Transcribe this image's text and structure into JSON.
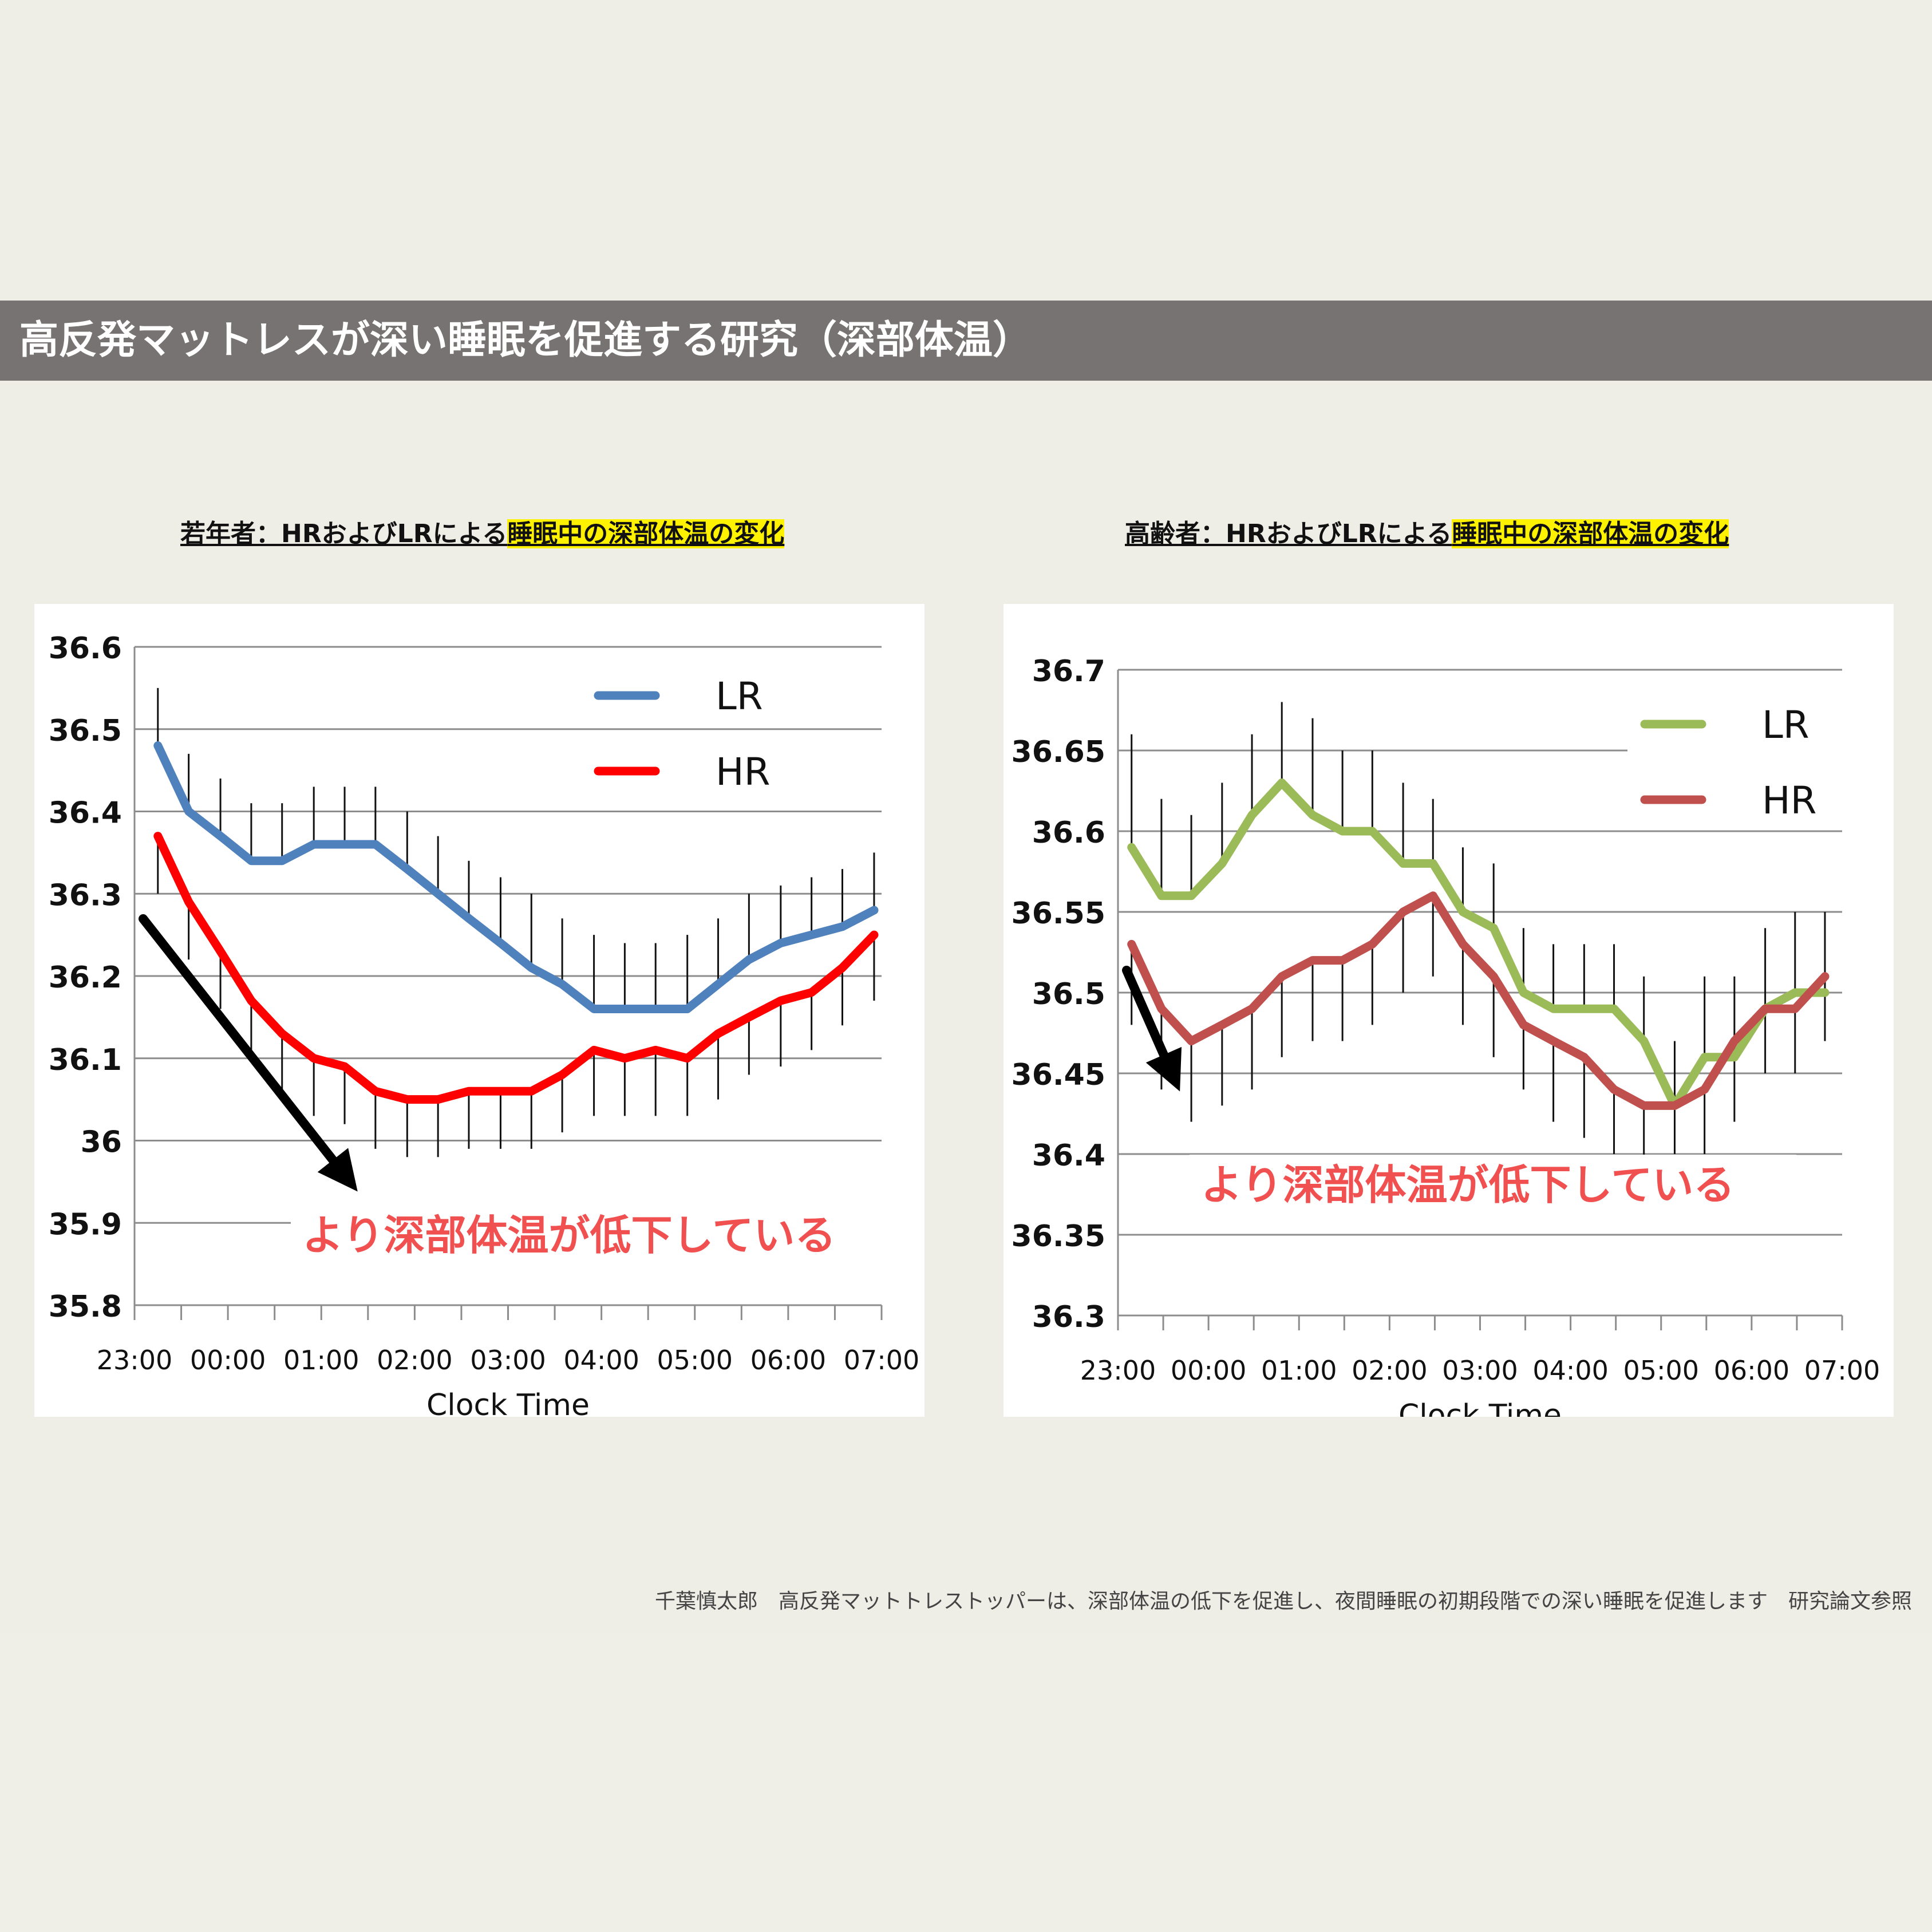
{
  "header": {
    "title": "高反発マットレスが深い睡眠を促進する研究（深部体温）"
  },
  "footer": {
    "note": "千葉慎太郎　高反発マットトレストッパーは、深部体温の低下を促進し、夜間睡眠の初期段階での深い睡眠を促進します　研究論文参照"
  },
  "chart_data": [
    {
      "type": "line",
      "title_plain": "若年者：HRおよびLRによる",
      "title_highlight": "睡眠中の深部体温の変化",
      "xlabel": "Clock Time",
      "ylabel": "",
      "x_tick_labels": [
        "23:00",
        "00:00",
        "01:00",
        "02:00",
        "03:00",
        "04:00",
        "05:00",
        "06:00",
        "07:00"
      ],
      "y_tick_labels": [
        "35.8",
        "35.9",
        "36",
        "36.1",
        "36.2",
        "36.3",
        "36.4",
        "36.5",
        "36.6"
      ],
      "ylim": [
        35.8,
        36.6
      ],
      "xlim": [
        23.0,
        31.0
      ],
      "grid": true,
      "legend_position": "top-right",
      "annotation": "より深部体温が低下している",
      "series": [
        {
          "name": "LR",
          "color": "#4f81bd",
          "x": [
            23.25,
            23.58,
            23.92,
            24.25,
            24.58,
            24.92,
            25.25,
            25.58,
            25.92,
            26.25,
            26.58,
            26.92,
            27.25,
            27.58,
            27.92,
            28.25,
            28.58,
            28.92,
            29.25,
            29.58,
            29.92,
            30.25,
            30.58,
            30.92
          ],
          "values": [
            36.48,
            36.4,
            36.37,
            36.34,
            36.34,
            36.36,
            36.36,
            36.36,
            36.33,
            36.3,
            36.27,
            36.24,
            36.21,
            36.19,
            36.16,
            36.16,
            36.16,
            36.16,
            36.19,
            36.22,
            36.24,
            36.25,
            36.26,
            36.28
          ],
          "error_upper": [
            36.55,
            36.47,
            36.44,
            36.41,
            36.41,
            36.43,
            36.43,
            36.43,
            36.4,
            36.37,
            36.34,
            36.32,
            36.3,
            36.27,
            36.25,
            36.24,
            36.24,
            36.25,
            36.27,
            36.3,
            36.31,
            36.32,
            36.33,
            36.35
          ]
        },
        {
          "name": "HR",
          "color": "#ff0000",
          "x": [
            23.25,
            23.58,
            23.92,
            24.25,
            24.58,
            24.92,
            25.25,
            25.58,
            25.92,
            26.25,
            26.58,
            26.92,
            27.25,
            27.58,
            27.92,
            28.25,
            28.58,
            28.92,
            29.25,
            29.58,
            29.92,
            30.25,
            30.58,
            30.92
          ],
          "values": [
            36.37,
            36.29,
            36.23,
            36.17,
            36.13,
            36.1,
            36.09,
            36.06,
            36.05,
            36.05,
            36.06,
            36.06,
            36.06,
            36.08,
            36.11,
            36.1,
            36.11,
            36.1,
            36.13,
            36.15,
            36.17,
            36.18,
            36.21,
            36.25
          ],
          "error_lower": [
            36.3,
            36.22,
            36.16,
            36.1,
            36.06,
            36.03,
            36.02,
            35.99,
            35.98,
            35.98,
            35.99,
            35.99,
            35.99,
            36.01,
            36.03,
            36.03,
            36.03,
            36.03,
            36.05,
            36.08,
            36.09,
            36.11,
            36.14,
            36.17
          ]
        }
      ]
    },
    {
      "type": "line",
      "title_plain": "高齢者：HRおよびLRによる",
      "title_highlight": "睡眠中の深部体温の変化",
      "xlabel": "Clock Time",
      "ylabel": "",
      "x_tick_labels": [
        "23:00",
        "00:00",
        "01:00",
        "02:00",
        "03:00",
        "04:00",
        "05:00",
        "06:00",
        "07:00"
      ],
      "y_tick_labels": [
        "36.3",
        "36.35",
        "36.4",
        "36.45",
        "36.5",
        "36.55",
        "36.6",
        "36.65",
        "36.7"
      ],
      "ylim": [
        36.3,
        36.7
      ],
      "xlim": [
        23.0,
        31.0
      ],
      "grid": true,
      "legend_position": "top-right",
      "annotation": "より深部体温が低下している",
      "series": [
        {
          "name": "LR",
          "color": "#9bbb59",
          "x": [
            23.15,
            23.48,
            23.81,
            24.15,
            24.48,
            24.81,
            25.15,
            25.48,
            25.81,
            26.15,
            26.48,
            26.81,
            27.15,
            27.48,
            27.81,
            28.15,
            28.48,
            28.81,
            29.15,
            29.48,
            29.81,
            30.15,
            30.48,
            30.81
          ],
          "values": [
            36.59,
            36.56,
            36.56,
            36.58,
            36.61,
            36.63,
            36.61,
            36.6,
            36.6,
            36.58,
            36.58,
            36.55,
            36.54,
            36.5,
            36.49,
            36.49,
            36.49,
            36.47,
            36.43,
            36.46,
            36.46,
            36.49,
            36.5,
            36.5
          ],
          "error_upper": [
            36.66,
            36.62,
            36.61,
            36.63,
            36.66,
            36.68,
            36.67,
            36.65,
            36.65,
            36.63,
            36.62,
            36.59,
            36.58,
            36.54,
            36.53,
            36.53,
            36.53,
            36.51,
            36.47,
            36.51,
            36.51,
            36.54,
            36.55,
            36.55
          ]
        },
        {
          "name": "HR",
          "color": "#c0504d",
          "x": [
            23.15,
            23.48,
            23.81,
            24.15,
            24.48,
            24.81,
            25.15,
            25.48,
            25.81,
            26.15,
            26.48,
            26.81,
            27.15,
            27.48,
            27.81,
            28.15,
            28.48,
            28.81,
            29.15,
            29.48,
            29.81,
            30.15,
            30.48,
            30.81
          ],
          "values": [
            36.53,
            36.49,
            36.47,
            36.48,
            36.49,
            36.51,
            36.52,
            36.52,
            36.53,
            36.55,
            36.56,
            36.53,
            36.51,
            36.48,
            36.47,
            36.46,
            36.44,
            36.43,
            36.43,
            36.44,
            36.47,
            36.49,
            36.49,
            36.51
          ],
          "error_lower": [
            36.48,
            36.44,
            36.42,
            36.43,
            36.44,
            36.46,
            36.47,
            36.47,
            36.48,
            36.5,
            36.51,
            36.48,
            36.46,
            36.44,
            36.42,
            36.41,
            36.4,
            36.39,
            36.4,
            36.4,
            36.42,
            36.45,
            36.45,
            36.47
          ]
        }
      ]
    }
  ]
}
